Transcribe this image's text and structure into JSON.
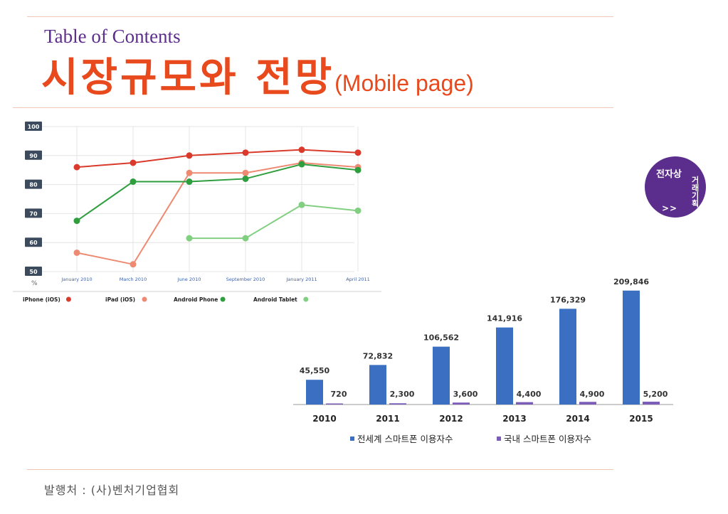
{
  "header": {
    "subtitle": "Table of Contents",
    "title_main": "시장규모와 전망",
    "title_sub": "(Mobile page)"
  },
  "badge": {
    "horizontal": "전자상",
    "vertical": "거래기획",
    "arrow": ">>",
    "color": "#5b2d8c"
  },
  "footer": {
    "source": "발행처 : (사)벤처기업협회"
  },
  "colors": {
    "accent": "#e8491d",
    "brand": "#5b2d8c",
    "rule": "#f2c7b4"
  },
  "chart_data": [
    {
      "type": "line",
      "ylim": [
        50,
        100
      ],
      "yticks": [
        "100",
        "90",
        "80",
        "70",
        "60",
        "50"
      ],
      "ylabel": "%",
      "x_labels": [
        "January 2010",
        "March 2010",
        "June 2010",
        "September 2010",
        "January 2011",
        "April 2011"
      ],
      "grid": true,
      "legend_position": "bottom",
      "series": [
        {
          "name": "iPhone (iOS)",
          "color": "#d93a2b",
          "values": [
            86,
            87.5,
            90,
            91,
            92,
            91
          ]
        },
        {
          "name": "iPad (iOS)",
          "color": "#ee8a72",
          "values": [
            56.5,
            52.5,
            84,
            84,
            87.5,
            86
          ]
        },
        {
          "name": "Android Phone",
          "color": "#2e9e3e",
          "values": [
            67.5,
            81,
            81,
            82,
            87,
            85
          ]
        },
        {
          "name": "Android Tablet",
          "color": "#82cf82",
          "values": [
            null,
            null,
            61.5,
            61.5,
            73,
            71
          ]
        }
      ]
    },
    {
      "type": "bar",
      "categories": [
        "2010",
        "2011",
        "2012",
        "2013",
        "2014",
        "2015"
      ],
      "ylim": [
        0,
        220000
      ],
      "legend_position": "bottom",
      "series": [
        {
          "name": "전세계 스마트폰 이용자수",
          "color": "#3a6fc2",
          "values": [
            45550,
            72832,
            106562,
            141916,
            176329,
            209846
          ],
          "labels": [
            "45,550",
            "72,832",
            "106,562",
            "141,916",
            "176,329",
            "209,846"
          ]
        },
        {
          "name": "국내 스마트폰 이용자수",
          "color": "#7b5cb8",
          "values": [
            720,
            2300,
            3600,
            4400,
            4900,
            5200
          ],
          "labels": [
            "720",
            "2,300",
            "3,600",
            "4,400",
            "4,900",
            "5,200"
          ]
        }
      ]
    }
  ]
}
